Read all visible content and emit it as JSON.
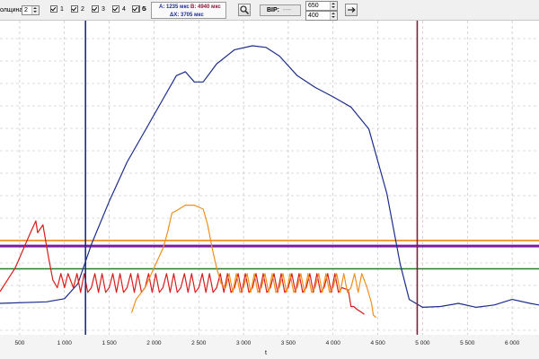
{
  "toolbar": {
    "amplitude_label": "олщина:",
    "amplitude_value": "2",
    "channels": [
      {
        "label": "1",
        "checked": true
      },
      {
        "label": "2",
        "checked": true
      },
      {
        "label": "3",
        "checked": true
      },
      {
        "label": "4",
        "checked": true
      },
      {
        "label": "5",
        "checked": true
      },
      {
        "label": "6",
        "checked": true
      }
    ],
    "cursor_a": "A: 1235 мкс",
    "cursor_b": "B: 4940 мкс",
    "delta": "ΔX: 3705 мкс",
    "zoom_icon": "magnifier-icon",
    "bip_label": "BIP:",
    "bip_value": "----",
    "range_top": "650",
    "range_bottom": "400",
    "apply_icon": "arrow-right-icon"
  },
  "chart_data": {
    "type": "line",
    "x_ticks": [
      "500",
      "1 000",
      "1 500",
      "2 000",
      "2 500",
      "3 000",
      "3 500",
      "4 000",
      "4 500",
      "5 000",
      "5 500",
      "6 000"
    ],
    "xlabel": "t",
    "xlim": [
      280,
      6300
    ],
    "ylim": [
      0,
      400
    ],
    "cursors": [
      {
        "name": "A",
        "x": 1235,
        "color": "#1c2d8c"
      },
      {
        "name": "B",
        "x": 4940,
        "color": "#8b1a3a"
      }
    ],
    "thresholds": [
      {
        "y": 120,
        "color": "#f07d00"
      },
      {
        "y": 113,
        "color": "#7a1f9c"
      },
      {
        "y": 84,
        "color": "#2a7a2a"
      }
    ],
    "series": [
      {
        "color": "#1c2d8c",
        "points": [
          [
            280,
            40
          ],
          [
            800,
            42
          ],
          [
            1000,
            46
          ],
          [
            1150,
            65
          ],
          [
            1300,
            115
          ],
          [
            1500,
            170
          ],
          [
            1700,
            220
          ],
          [
            1900,
            260
          ],
          [
            2100,
            300
          ],
          [
            2250,
            330
          ],
          [
            2350,
            335
          ],
          [
            2450,
            322
          ],
          [
            2550,
            322
          ],
          [
            2700,
            345
          ],
          [
            2900,
            363
          ],
          [
            3100,
            368
          ],
          [
            3250,
            366
          ],
          [
            3400,
            355
          ],
          [
            3600,
            330
          ],
          [
            3800,
            315
          ],
          [
            4000,
            303
          ],
          [
            4200,
            290
          ],
          [
            4400,
            262
          ],
          [
            4600,
            180
          ],
          [
            4750,
            90
          ],
          [
            4850,
            45
          ],
          [
            5000,
            35
          ],
          [
            5200,
            36
          ],
          [
            5400,
            40
          ],
          [
            5600,
            35
          ],
          [
            5800,
            38
          ],
          [
            6000,
            45
          ],
          [
            6200,
            40
          ],
          [
            6300,
            38
          ]
        ]
      },
      {
        "color": "#d81c1c",
        "points": [
          [
            280,
            55
          ],
          [
            450,
            85
          ],
          [
            620,
            130
          ],
          [
            680,
            145
          ],
          [
            700,
            130
          ],
          [
            760,
            140
          ],
          [
            820,
            100
          ],
          [
            870,
            70
          ],
          [
            920,
            60
          ],
          [
            1000,
            60
          ],
          [
            1100,
            60
          ],
          [
            1300,
            60
          ],
          [
            1500,
            60
          ],
          [
            1700,
            60
          ],
          [
            1900,
            60
          ],
          [
            2100,
            60
          ],
          [
            2300,
            60
          ],
          [
            2500,
            60
          ],
          [
            2700,
            60
          ],
          [
            2900,
            60
          ],
          [
            3100,
            60
          ],
          [
            3300,
            60
          ],
          [
            3500,
            60
          ],
          [
            3700,
            60
          ],
          [
            3900,
            60
          ],
          [
            4100,
            60
          ],
          [
            4170,
            57
          ],
          [
            4200,
            36
          ],
          [
            4230,
            36
          ],
          [
            4270,
            32
          ],
          [
            4300,
            30
          ],
          [
            4350,
            26
          ]
        ]
      },
      {
        "color": "#f0901a",
        "points": [
          [
            1750,
            28
          ],
          [
            1800,
            45
          ],
          [
            1900,
            60
          ],
          [
            2000,
            85
          ],
          [
            2100,
            110
          ],
          [
            2150,
            130
          ],
          [
            2200,
            155
          ],
          [
            2250,
            158
          ],
          [
            2350,
            165
          ],
          [
            2450,
            165
          ],
          [
            2550,
            160
          ],
          [
            2600,
            140
          ],
          [
            2650,
            110
          ],
          [
            2700,
            85
          ],
          [
            2750,
            65
          ],
          [
            2800,
            60
          ],
          [
            3000,
            60
          ],
          [
            3200,
            60
          ],
          [
            3400,
            60
          ],
          [
            3600,
            60
          ],
          [
            3800,
            60
          ],
          [
            4000,
            60
          ],
          [
            4200,
            60
          ],
          [
            4380,
            60
          ],
          [
            4430,
            40
          ],
          [
            4450,
            25
          ],
          [
            4480,
            22
          ]
        ]
      }
    ]
  }
}
